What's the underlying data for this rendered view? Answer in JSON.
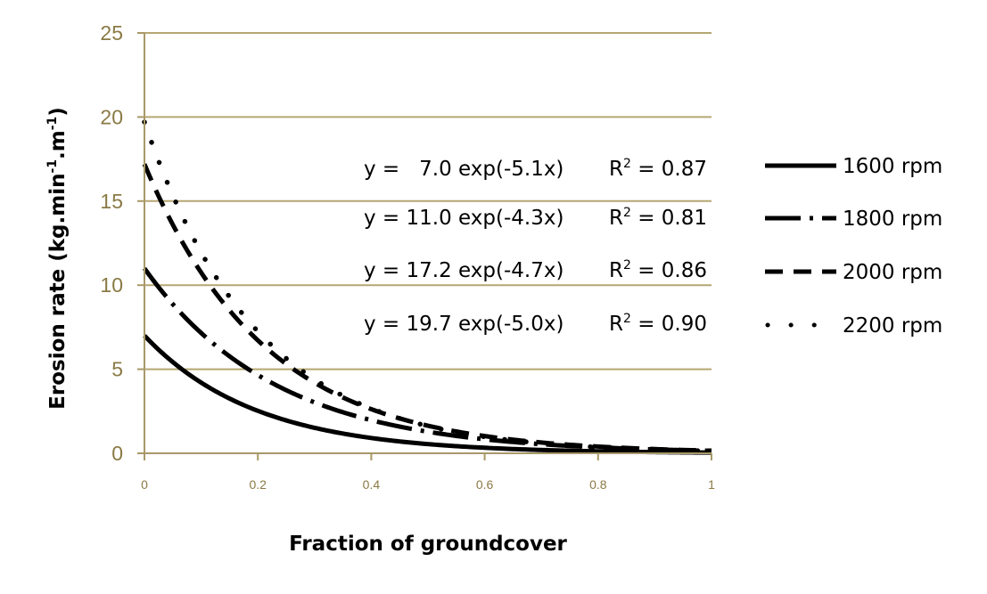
{
  "chart_data": {
    "type": "line",
    "title": "",
    "xlabel": "Fraction of groundcover",
    "ylabel": "Erosion rate (kg.min-1.m-1)",
    "ylabel_parts": [
      "Erosion rate (kg.min",
      "-1",
      ".m",
      "-1",
      ")"
    ],
    "xlim": [
      0,
      1
    ],
    "ylim": [
      0,
      25
    ],
    "x_ticks": [
      0,
      0.2,
      0.4,
      0.6,
      0.8,
      1
    ],
    "x_tick_labels": [
      "0",
      "0.2",
      "0.4",
      "0.6",
      "0.8",
      "1"
    ],
    "y_ticks": [
      0,
      5,
      10,
      15,
      20,
      25
    ],
    "y_tick_labels": [
      "0",
      "5",
      "10",
      "15",
      "20",
      "25"
    ],
    "grid": "horizontal",
    "legend_placement": "right",
    "series": [
      {
        "name": "1600 rpm",
        "a": 7.0,
        "b": -5.1,
        "r2": 0.87,
        "line_style": "solid"
      },
      {
        "name": "1800 rpm",
        "a": 11.0,
        "b": -4.3,
        "r2": 0.81,
        "line_style": "dash-dot"
      },
      {
        "name": "2000 rpm",
        "a": 17.2,
        "b": -4.7,
        "r2": 0.86,
        "line_style": "dash"
      },
      {
        "name": "2200 rpm",
        "a": 19.7,
        "b": -5.0,
        "r2": 0.9,
        "line_style": "dot"
      }
    ],
    "annotations": [
      {
        "y": "y =   7.0 exp(-5.1x)",
        "r": "R",
        "sup": "2",
        "val": " = 0.87"
      },
      {
        "y": "y = 11.0 exp(-4.3x)",
        "r": "R",
        "sup": "2",
        "val": " = 0.81"
      },
      {
        "y": "y = 17.2 exp(-4.7x)",
        "r": "R",
        "sup": "2",
        "val": " = 0.86"
      },
      {
        "y": "y = 19.7 exp(-5.0x)",
        "r": "R",
        "sup": "2",
        "val": " = 0.90"
      }
    ],
    "colors": {
      "grid": "#b5a672",
      "axis": "#a89968",
      "tick_text": "#8a7a45",
      "series": "#000000"
    }
  }
}
